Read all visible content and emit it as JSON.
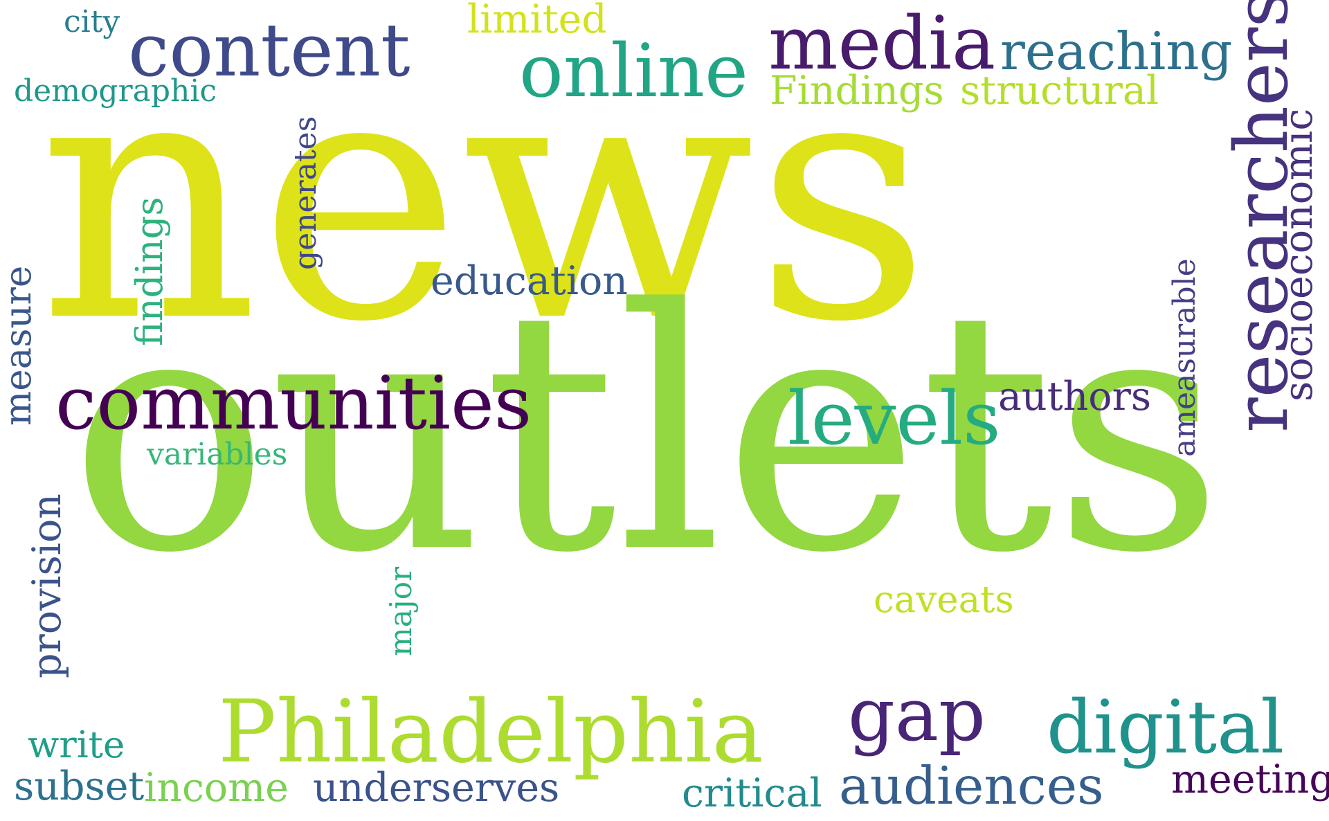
{
  "words": [
    {
      "text": "news",
      "color": "#dde318"
    },
    {
      "text": "outlets",
      "color": "#93d741"
    },
    {
      "text": "communities",
      "color": "#440154"
    },
    {
      "text": "content",
      "color": "#3e4a89"
    },
    {
      "text": "media",
      "color": "#481b6d"
    },
    {
      "text": "online",
      "color": "#21a585"
    },
    {
      "text": "reaching",
      "color": "#2d708e"
    },
    {
      "text": "Philadelphia",
      "color": "#addc30"
    },
    {
      "text": "levels",
      "color": "#25ab82"
    },
    {
      "text": "digital",
      "color": "#20928c"
    },
    {
      "text": "gap",
      "color": "#482576"
    },
    {
      "text": "audiences",
      "color": "#355e8d"
    },
    {
      "text": "researchers",
      "color": "#46327e"
    },
    {
      "text": "socioeconomic",
      "color": "#46317e"
    },
    {
      "text": "authors",
      "color": "#472d7b"
    },
    {
      "text": "education",
      "color": "#38598c"
    },
    {
      "text": "Findings",
      "color": "#a5db36"
    },
    {
      "text": "structural",
      "color": "#b5de2b"
    },
    {
      "text": "limited",
      "color": "#d2e21b"
    },
    {
      "text": "city",
      "color": "#287d8e"
    },
    {
      "text": "demographic",
      "color": "#1f988b"
    },
    {
      "text": "generates",
      "color": "#3f4788"
    },
    {
      "text": "findings",
      "color": "#2db27d"
    },
    {
      "text": "measure",
      "color": "#39568c"
    },
    {
      "text": "ameasurable",
      "color": "#433e85"
    },
    {
      "text": "variables",
      "color": "#35b779"
    },
    {
      "text": "provision",
      "color": "#3b528b"
    },
    {
      "text": "major",
      "color": "#29af7f"
    },
    {
      "text": "caveats",
      "color": "#c2df23"
    },
    {
      "text": "write",
      "color": "#1f9e89"
    },
    {
      "text": "subset",
      "color": "#2c728e"
    },
    {
      "text": "income",
      "color": "#7ad151"
    },
    {
      "text": "underserves",
      "color": "#3b528b"
    },
    {
      "text": "critical",
      "color": "#238a8d"
    },
    {
      "text": "meeting",
      "color": "#450559"
    }
  ]
}
